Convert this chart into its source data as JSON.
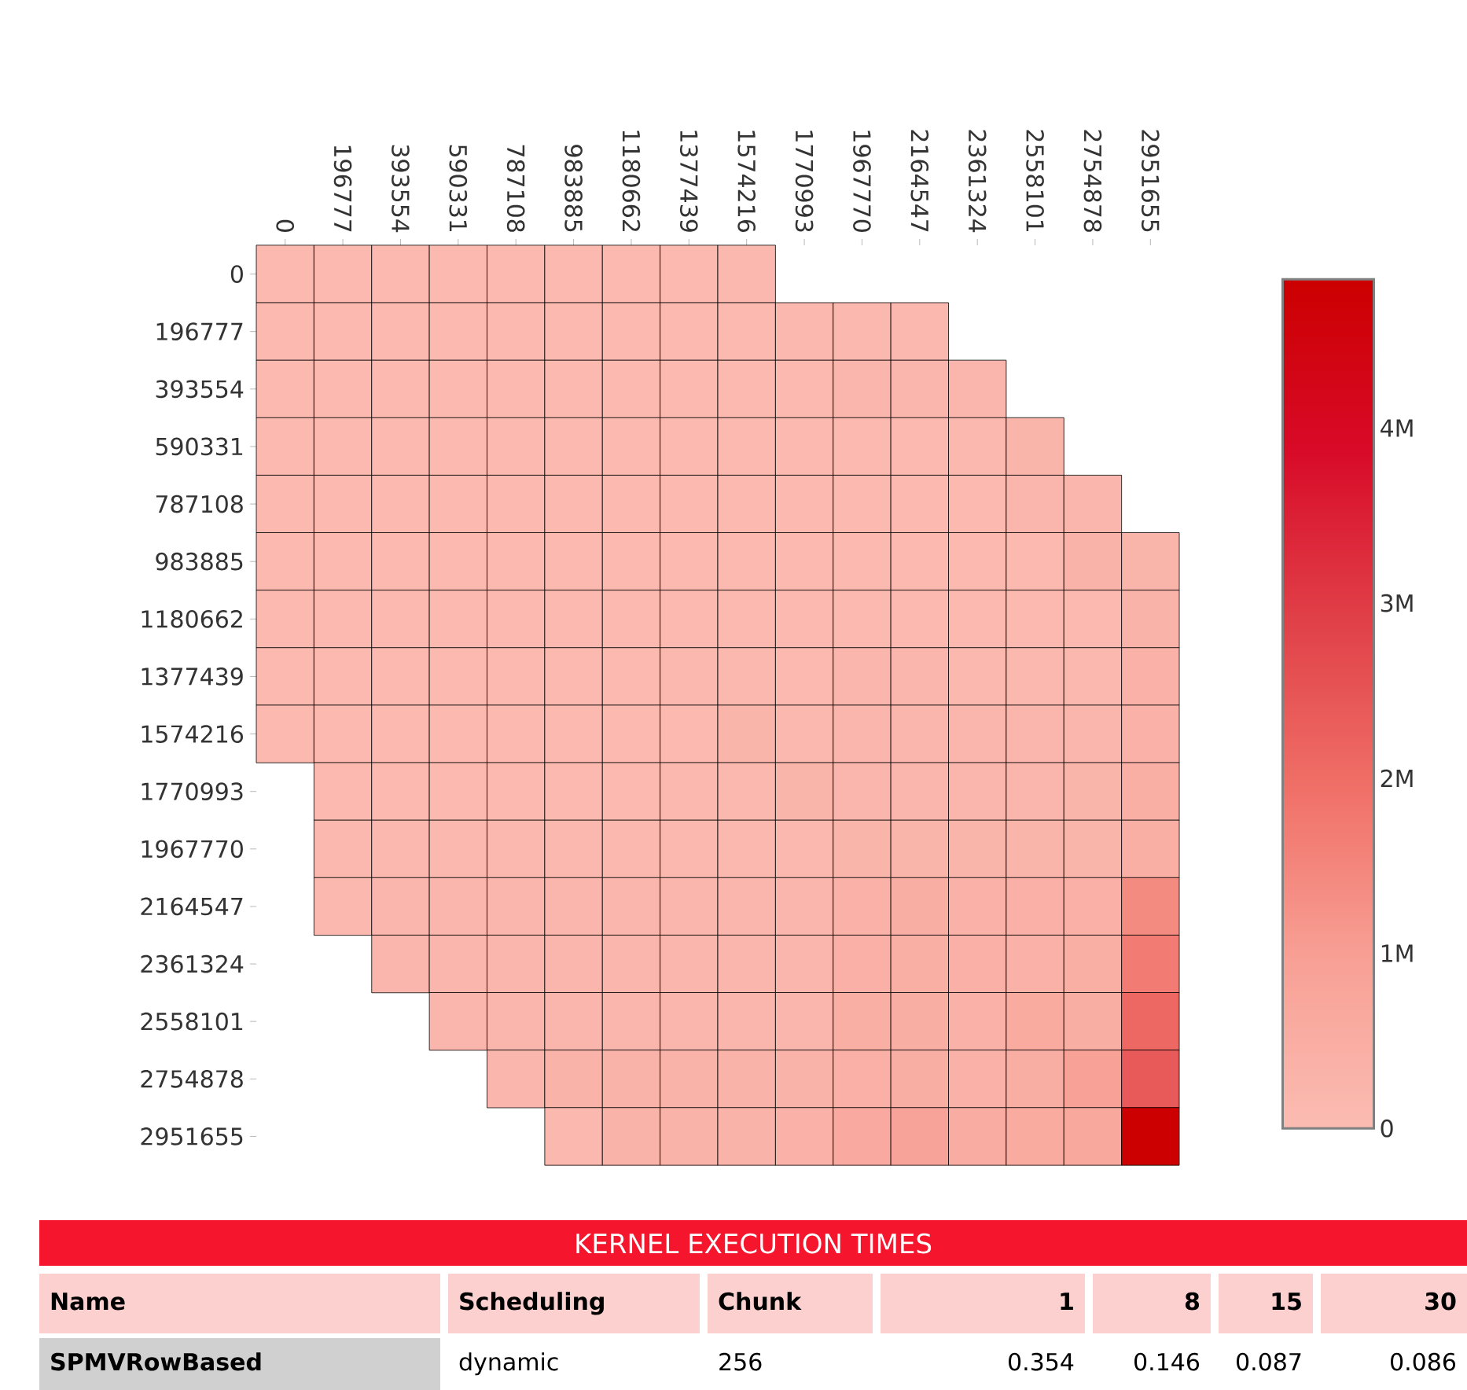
{
  "chart_data": [
    {
      "type": "heatmap",
      "categories": [
        "0",
        "196777",
        "393554",
        "590331",
        "787108",
        "983885",
        "1180662",
        "1377439",
        "1574216",
        "1770993",
        "1967770",
        "2164547",
        "2361324",
        "2558101",
        "2754878",
        "2951655"
      ],
      "y_categories": [
        "0",
        "196777",
        "393554",
        "590331",
        "787108",
        "983885",
        "1180662",
        "1377439",
        "1574216",
        "1770993",
        "1967770",
        "2164547",
        "2361324",
        "2558101",
        "2754878",
        "2951655"
      ],
      "cells": [
        [
          100000,
          100000,
          100000,
          100000,
          100000,
          100000,
          100000,
          100000,
          150000,
          null,
          null,
          null,
          null,
          null,
          null,
          null
        ],
        [
          100000,
          100000,
          100000,
          100000,
          100000,
          100000,
          100000,
          100000,
          100000,
          150000,
          150000,
          150000,
          null,
          null,
          null,
          null
        ],
        [
          100000,
          100000,
          100000,
          100000,
          100000,
          100000,
          100000,
          100000,
          100000,
          100000,
          200000,
          200000,
          200000,
          null,
          null,
          null
        ],
        [
          100000,
          100000,
          100000,
          100000,
          100000,
          100000,
          100000,
          100000,
          100000,
          100000,
          100000,
          100000,
          150000,
          250000,
          null,
          null
        ],
        [
          100000,
          100000,
          100000,
          100000,
          100000,
          100000,
          100000,
          100000,
          100000,
          100000,
          100000,
          100000,
          100000,
          200000,
          200000,
          null
        ],
        [
          100000,
          100000,
          100000,
          100000,
          100000,
          100000,
          100000,
          100000,
          100000,
          100000,
          100000,
          100000,
          100000,
          100000,
          300000,
          250000
        ],
        [
          100000,
          100000,
          100000,
          100000,
          100000,
          100000,
          100000,
          100000,
          100000,
          100000,
          100000,
          100000,
          100000,
          100000,
          100000,
          300000
        ],
        [
          100000,
          100000,
          100000,
          100000,
          100000,
          100000,
          100000,
          150000,
          150000,
          100000,
          200000,
          200000,
          150000,
          150000,
          150000,
          350000
        ],
        [
          100000,
          100000,
          100000,
          100000,
          100000,
          100000,
          100000,
          100000,
          250000,
          150000,
          200000,
          200000,
          200000,
          200000,
          200000,
          350000
        ],
        [
          null,
          100000,
          100000,
          100000,
          100000,
          100000,
          100000,
          150000,
          150000,
          250000,
          200000,
          200000,
          200000,
          200000,
          250000,
          450000
        ],
        [
          null,
          150000,
          150000,
          150000,
          150000,
          150000,
          150000,
          150000,
          150000,
          150000,
          250000,
          250000,
          250000,
          250000,
          250000,
          450000
        ],
        [
          null,
          150000,
          200000,
          200000,
          200000,
          200000,
          200000,
          200000,
          200000,
          200000,
          350000,
          500000,
          350000,
          400000,
          400000,
          1400000
        ],
        [
          null,
          null,
          200000,
          200000,
          200000,
          200000,
          200000,
          200000,
          200000,
          200000,
          400000,
          450000,
          400000,
          350000,
          450000,
          1700000
        ],
        [
          null,
          null,
          null,
          200000,
          200000,
          200000,
          200000,
          200000,
          200000,
          200000,
          450000,
          500000,
          350000,
          600000,
          500000,
          2100000
        ],
        [
          null,
          null,
          null,
          null,
          200000,
          300000,
          300000,
          300000,
          300000,
          300000,
          400000,
          500000,
          350000,
          500000,
          950000,
          2400000
        ],
        [
          null,
          null,
          null,
          null,
          null,
          150000,
          300000,
          300000,
          300000,
          350000,
          650000,
          850000,
          550000,
          600000,
          700000,
          4850000
        ]
      ],
      "clim": [
        0,
        4850000
      ],
      "cticks": [
        0,
        {
          "value": 1000000,
          "label": "1M"
        },
        {
          "value": 2000000,
          "label": "2M"
        },
        {
          "value": 3000000,
          "label": "3M"
        },
        {
          "value": 4000000,
          "label": "4M"
        }
      ]
    },
    {
      "type": "other",
      "title": "KERNEL EXECUTION TIMES",
      "annotations": [
        "Name",
        "Scheduling",
        "Chunk",
        "1",
        "8",
        "15",
        "30",
        "SPMVRowBased",
        "dynamic",
        "256",
        "0.354",
        "0.146",
        "0.087",
        "0.086"
      ]
    }
  ]
}
